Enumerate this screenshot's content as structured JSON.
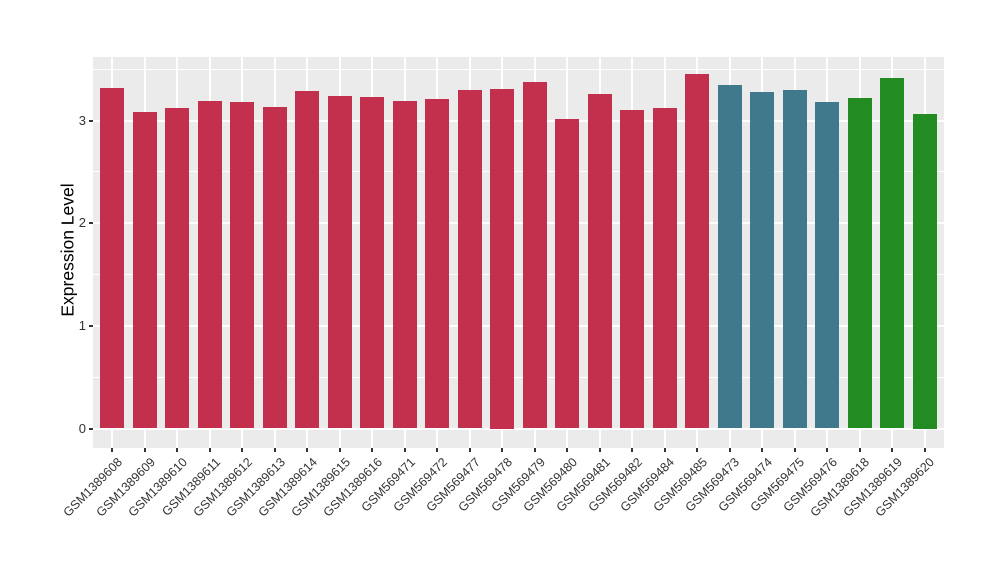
{
  "chart_data": {
    "type": "bar",
    "title": "",
    "xlabel": "",
    "ylabel": "Expression Level",
    "ylim": [
      -0.19,
      3.62
    ],
    "yticks": [
      0,
      1,
      2,
      3
    ],
    "yticks_minor": [
      0.5,
      1.5,
      2.5,
      3.5
    ],
    "grid": "on",
    "legend": "none",
    "panel_background": "#EBEBEB",
    "grid_color": "#FFFFFF",
    "tick_color": "#333333",
    "group_colors": {
      "group1": "#C3304E",
      "group2": "#41798C",
      "group3": "#228B22"
    },
    "bars": [
      {
        "label": "GSM1389608",
        "value": 3.32,
        "group": "group1"
      },
      {
        "label": "GSM1389609",
        "value": 3.08,
        "group": "group1"
      },
      {
        "label": "GSM1389610",
        "value": 3.12,
        "group": "group1"
      },
      {
        "label": "GSM1389611",
        "value": 3.19,
        "group": "group1"
      },
      {
        "label": "GSM1389612",
        "value": 3.18,
        "group": "group1"
      },
      {
        "label": "GSM1389613",
        "value": 3.13,
        "group": "group1"
      },
      {
        "label": "GSM1389614",
        "value": 3.29,
        "group": "group1"
      },
      {
        "label": "GSM1389615",
        "value": 3.24,
        "group": "group1"
      },
      {
        "label": "GSM1389616",
        "value": 3.23,
        "group": "group1"
      },
      {
        "label": "GSM569471",
        "value": 3.19,
        "group": "group1"
      },
      {
        "label": "GSM569472",
        "value": 3.21,
        "group": "group1"
      },
      {
        "label": "GSM569477",
        "value": 3.3,
        "group": "group1"
      },
      {
        "label": "GSM569478",
        "value": 3.31,
        "group": "group1"
      },
      {
        "label": "GSM569479",
        "value": 3.38,
        "group": "group1"
      },
      {
        "label": "GSM569480",
        "value": 3.02,
        "group": "group1"
      },
      {
        "label": "GSM569481",
        "value": 3.26,
        "group": "group1"
      },
      {
        "label": "GSM569482",
        "value": 3.1,
        "group": "group1"
      },
      {
        "label": "GSM569484",
        "value": 3.12,
        "group": "group1"
      },
      {
        "label": "GSM569485",
        "value": 3.45,
        "group": "group1"
      },
      {
        "label": "GSM569473",
        "value": 3.35,
        "group": "group2"
      },
      {
        "label": "GSM569474",
        "value": 3.28,
        "group": "group2"
      },
      {
        "label": "GSM569475",
        "value": 3.3,
        "group": "group2"
      },
      {
        "label": "GSM569476",
        "value": 3.18,
        "group": "group2"
      },
      {
        "label": "GSM1389618",
        "value": 3.22,
        "group": "group3"
      },
      {
        "label": "GSM1389619",
        "value": 3.42,
        "group": "group3"
      },
      {
        "label": "GSM1389620",
        "value": 3.06,
        "group": "group3"
      }
    ]
  }
}
